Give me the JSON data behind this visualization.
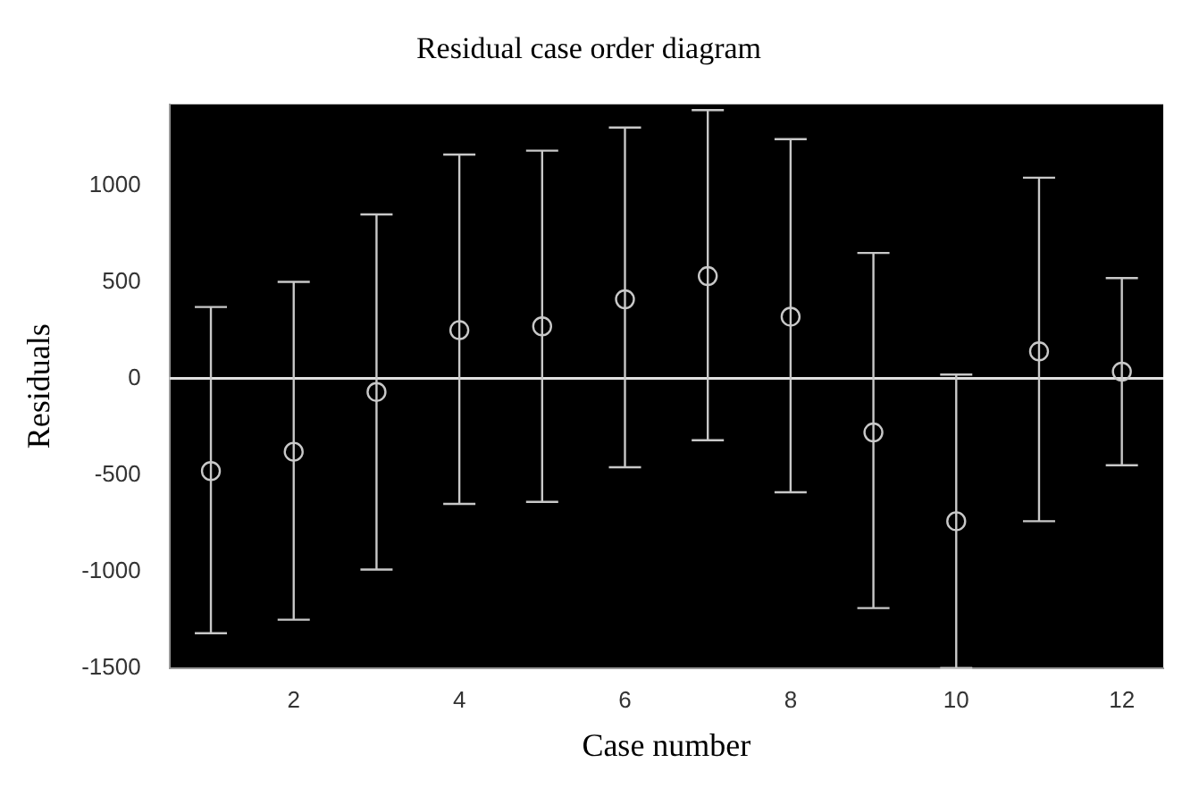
{
  "chart_data": {
    "type": "scatter",
    "title": "Residual case order diagram",
    "xlabel": "Case number",
    "ylabel": "Residuals",
    "x": [
      1,
      2,
      3,
      4,
      5,
      6,
      7,
      8,
      9,
      10,
      11,
      12
    ],
    "series": [
      {
        "color": "#c8c8c8",
        "values": [
          -480,
          -380,
          -70,
          250,
          270,
          410,
          530,
          320,
          -280,
          -740,
          140,
          35
        ],
        "errors": [
          [
            -1320,
            370
          ],
          [
            -1250,
            500
          ],
          [
            -990,
            850
          ],
          [
            -650,
            1160
          ],
          [
            -640,
            1180
          ],
          [
            -460,
            1300
          ],
          [
            -320,
            1390
          ],
          [
            -590,
            1240
          ],
          [
            -1190,
            650
          ],
          [
            -1500,
            20
          ],
          [
            -740,
            1040
          ],
          [
            -450,
            520
          ]
        ]
      }
    ],
    "xlim": [
      0.5,
      12.5
    ],
    "xticks": [
      2,
      4,
      6,
      8,
      10,
      12
    ],
    "ylim": [
      -1500,
      1420
    ],
    "yticks": [
      -1500,
      -1000,
      -500,
      0,
      500,
      1000
    ],
    "ref_lines": [
      {
        "axis": "y",
        "value": 0,
        "color": "#e0e0e0"
      }
    ],
    "marker": "circle",
    "grid": false,
    "legend": false
  }
}
